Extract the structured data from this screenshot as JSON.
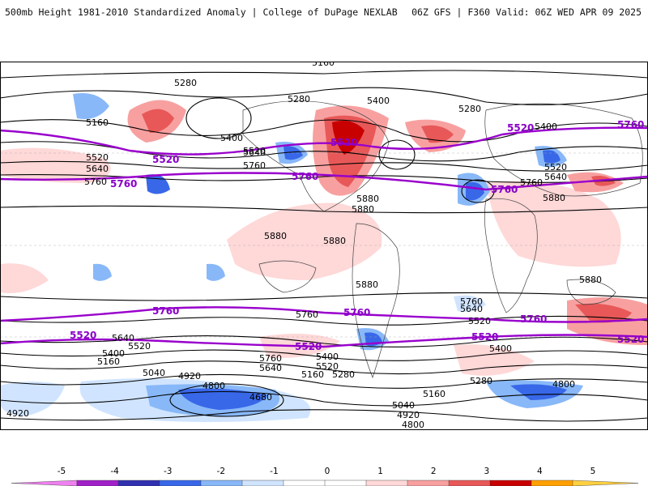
{
  "header": {
    "title": "500mb Height 1981-2010 Standardized Anomaly | College of DuPage NEXLAB",
    "run_info": "06Z GFS | F360 Valid: 06Z WED APR 09 2025"
  },
  "colors": {
    "purple_contour": "#9900cc",
    "scale": [
      "#f080f0",
      "#a020c8",
      "#3030b0",
      "#3868e8",
      "#88b8f8",
      "#d0e4ff",
      "#ffffff",
      "#ffffff",
      "#ffd8d8",
      "#f8a0a0",
      "#e85858",
      "#c80000",
      "#ffa000",
      "#ffd040"
    ]
  },
  "colorbar": {
    "ticks": [
      "-5",
      "-4",
      "-3",
      "-2",
      "-1",
      "0",
      "1",
      "2",
      "3",
      "4",
      "5"
    ]
  },
  "map_labels": {
    "black": [
      "5160",
      "5280",
      "5400",
      "5520",
      "5640",
      "5760",
      "5880",
      "5280",
      "5160",
      "5400",
      "5640",
      "5520",
      "5760",
      "5880",
      "5880",
      "5880",
      "5880",
      "5880",
      "5280",
      "5400",
      "5520",
      "5640",
      "5760",
      "5880",
      "5760",
      "5640",
      "5520",
      "5400",
      "5160",
      "5040",
      "4920",
      "4800",
      "4680",
      "5760",
      "5640",
      "5520",
      "5400",
      "5280",
      "5160",
      "5040",
      "4920",
      "4800",
      "5760",
      "5640",
      "5520",
      "5400",
      "5280",
      "5160",
      "4800",
      "4920"
    ],
    "purple": [
      "5520",
      "5760",
      "5520",
      "5760",
      "5520",
      "5760",
      "5760",
      "5520",
      "5760",
      "5520",
      "5520",
      "5760",
      "5520",
      "5760"
    ]
  }
}
